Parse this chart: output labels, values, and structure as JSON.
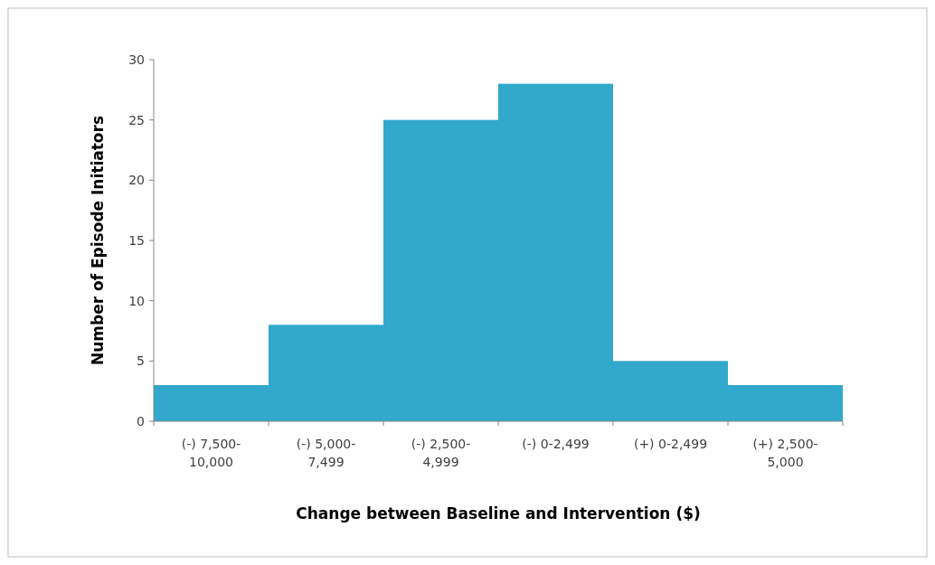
{
  "chart_data": {
    "type": "bar",
    "xlabel": "Change between Baseline and Intervention ($)",
    "ylabel": "Number of Episode Initiators",
    "categories": [
      "(-) 7,500-10,000",
      "(-) 5,000-7,499",
      "(-) 2,500-4,999",
      "(-) 0-2,499",
      "(+) 0-2,499",
      "(+) 2,500-5,000"
    ],
    "values": [
      3,
      8,
      25,
      28,
      5,
      3
    ],
    "color": "#31a8cc",
    "ylim": [
      0,
      30
    ],
    "yticks": [
      0,
      5,
      10,
      15,
      20,
      25,
      30
    ],
    "grid": false
  }
}
